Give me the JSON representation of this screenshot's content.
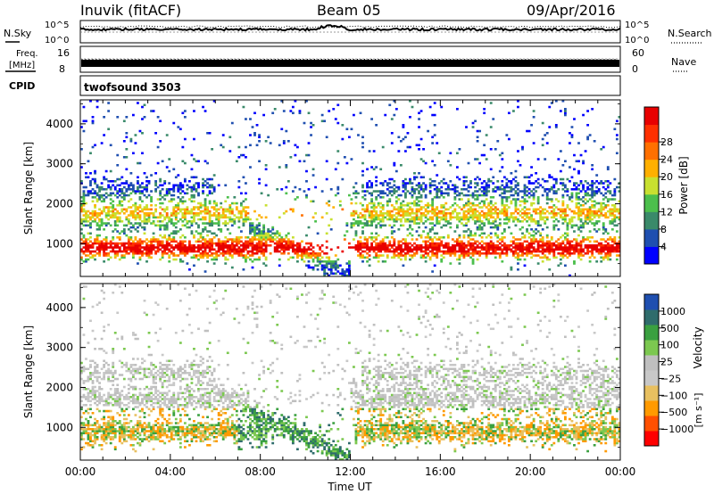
{
  "header": {
    "station": "Inuvik (fitACF)",
    "beam": "Beam 05",
    "date": "09/Apr/2016"
  },
  "noise_panel": {
    "left_label": "N.Sky",
    "right_label": "N.Search",
    "ticks_top": "10^5",
    "ticks_bottom": "10^0"
  },
  "freq_panel": {
    "label_line1": "Freq.",
    "label_line2": "[MHz]",
    "right_label": "Nave",
    "left_ticks": [
      "16",
      "8"
    ],
    "right_ticks": [
      "60",
      "0"
    ]
  },
  "cpid_panel": {
    "label": "CPID",
    "value": "twofsound 3503"
  },
  "colors": {
    "power": [
      "#0000ff",
      "#1f4fb0",
      "#3a8a6a",
      "#4cbf4c",
      "#c8e030",
      "#ffb000",
      "#ff7000",
      "#ff3000",
      "#e80000"
    ],
    "velocity": [
      "#ff0000",
      "#ff5000",
      "#ff9a00",
      "#e8c060",
      "#c8c8c8",
      "#bfbfbf",
      "#7cc850",
      "#3aa040",
      "#2f6c6c",
      "#1f4fb0"
    ]
  },
  "chart_data": [
    {
      "type": "heatmap",
      "name": "power",
      "title": "",
      "xlabel": "",
      "ylabel": "Slant Range [km]",
      "xlim": [
        0,
        24
      ],
      "ylim": [
        180,
        4600
      ],
      "yticks": [
        "1000",
        "2000",
        "3000",
        "4000"
      ],
      "colorbar": {
        "label": "Power [dB]",
        "ticks": [
          "4",
          "8",
          "12",
          "16",
          "20",
          "24",
          "28"
        ],
        "range": [
          0,
          30
        ]
      }
    },
    {
      "type": "heatmap",
      "name": "velocity",
      "title": "",
      "xlabel": "Time UT",
      "ylabel": "Slant Range [km]",
      "xlim": [
        0,
        24
      ],
      "ylim": [
        180,
        4600
      ],
      "yticks": [
        "1000",
        "2000",
        "3000",
        "4000"
      ],
      "xticks": [
        "00:00",
        "04:00",
        "08:00",
        "12:00",
        "16:00",
        "20:00",
        "00:00"
      ],
      "colorbar": {
        "label": "Velocity",
        "unit": "[m s⁻¹]",
        "ticks": [
          "1000",
          "500",
          "100",
          "25",
          "−25",
          "−100",
          "−500",
          "−1000"
        ]
      }
    }
  ]
}
